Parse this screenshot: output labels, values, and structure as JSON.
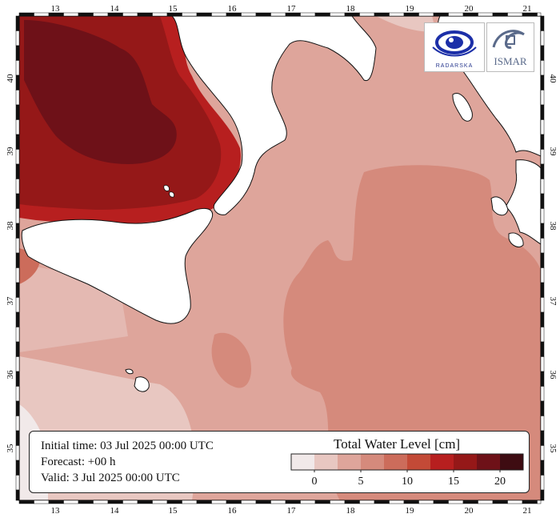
{
  "map": {
    "lon_labels": [
      "13",
      "14",
      "15",
      "16",
      "17",
      "18",
      "19",
      "20",
      "21"
    ],
    "lat_labels": [
      "40",
      "39",
      "38",
      "37",
      "36",
      "35"
    ],
    "colors": {
      "land": "#ffffff",
      "coast": "#111111",
      "frame": "#111111"
    }
  },
  "logos": {
    "left_text": "RADARSKA",
    "right_text": "ISMAR"
  },
  "info": {
    "initial_time": "Initial time: 03 Jul 2025 00:00 UTC",
    "forecast": "Forecast: +00 h",
    "valid": "Valid:  3 Jul 2025 00:00 UTC"
  },
  "legend": {
    "title": "Total Water Level [cm]",
    "ticks": [
      "0",
      "5",
      "10",
      "15",
      "20"
    ],
    "colors": [
      "#f1e9e9",
      "#e8c7c1",
      "#dea59b",
      "#d58a7c",
      "#cc6c5b",
      "#c34a37",
      "#b71f1f",
      "#951818",
      "#6e1118",
      "#3e0c12"
    ]
  }
}
